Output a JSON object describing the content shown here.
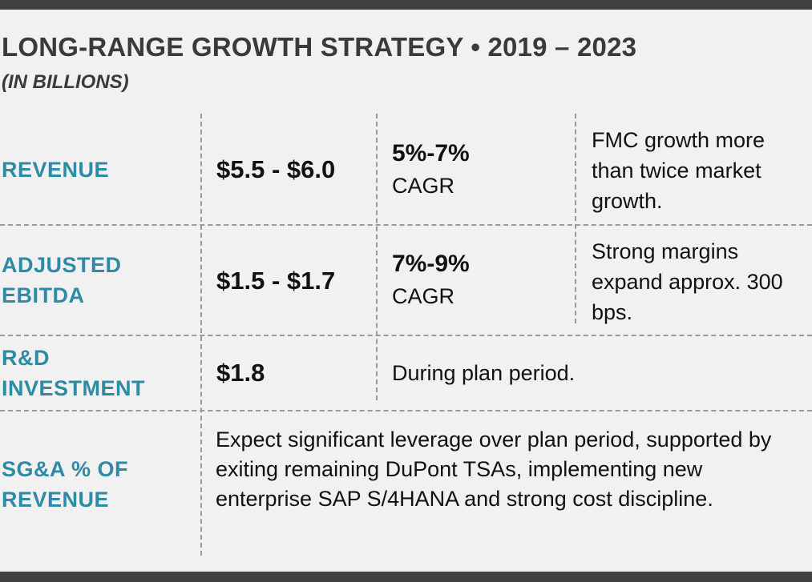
{
  "header": {
    "title": "LONG-RANGE GROWTH STRATEGY • 2019 – 2023",
    "subtitle": "(IN BILLIONS)"
  },
  "rows": [
    {
      "metric": "REVENUE",
      "value": "$5.5 - $6.0",
      "growth": "5%-7%",
      "growth_label": "CAGR",
      "note": "FMC growth more than twice market growth."
    },
    {
      "metric": "ADJUSTED EBITDA",
      "value": "$1.5 - $1.7",
      "growth": "7%-9%",
      "growth_label": "CAGR",
      "note": "Strong margins expand approx. 300 bps."
    },
    {
      "metric": "R&D INVESTMENT",
      "value": "$1.8",
      "note": "During plan period."
    },
    {
      "metric": "SG&A % OF REVENUE",
      "note": "Expect significant leverage over plan period, supported by exiting remaining DuPont TSAs, implementing new enterprise SAP S/4HANA and strong cost discipline."
    }
  ]
}
